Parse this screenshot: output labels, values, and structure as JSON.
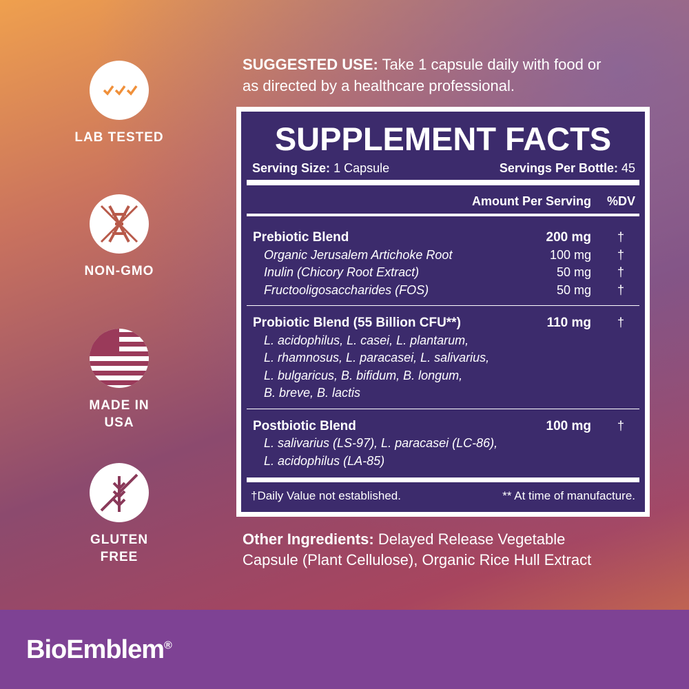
{
  "badges": [
    {
      "lines": [
        "LAB TESTED"
      ]
    },
    {
      "lines": [
        "NON-GMO"
      ]
    },
    {
      "lines": [
        "MADE IN",
        "USA"
      ]
    },
    {
      "lines": [
        "GLUTEN",
        "FREE"
      ]
    }
  ],
  "suggested_use": {
    "label": "SUGGESTED USE:",
    "lines": [
      "Take 1 capsule daily with food or",
      "as directed by a healthcare professional."
    ]
  },
  "facts": {
    "title": "SUPPLEMENT FACTS",
    "serving_size": {
      "label": "Serving Size:",
      "value": "1 Capsule"
    },
    "servings_per_bottle": {
      "label": "Servings Per Bottle:",
      "value": "45"
    },
    "columns": [
      "Amount Per Serving",
      "%DV"
    ],
    "blends": [
      {
        "name": "Prebiotic Blend",
        "amount": "200 mg",
        "dv": "†",
        "items": [
          {
            "name": "Organic Jerusalem Artichoke Root",
            "amount": "100 mg",
            "dv": "†"
          },
          {
            "name": "Inulin (Chicory Root Extract)",
            "amount": "50 mg",
            "dv": "†"
          },
          {
            "name": "Fructooligosaccharides (FOS)",
            "amount": "50 mg",
            "dv": "†"
          }
        ]
      },
      {
        "name": "Probiotic Blend (55 Billion CFU**)",
        "amount": "110 mg",
        "dv": "†",
        "strains": [
          "L. acidophilus, L. casei, L. plantarum,",
          "L. rhamnosus, L. paracasei, L. salivarius,",
          "L. bulgaricus, B. bifidum, B. longum,",
          "B. breve, B. lactis"
        ]
      },
      {
        "name": "Postbiotic Blend",
        "amount": "100 mg",
        "dv": "†",
        "strains": [
          "L. salivarius (LS-97), L. paracasei (LC-86),",
          "L. acidophilus (LA-85)"
        ]
      }
    ],
    "footnotes": [
      "†Daily Value not established.",
      "** At time of manufacture."
    ]
  },
  "other_ingredients": {
    "label": "Other Ingredients:",
    "lines": [
      "Delayed Release Vegetable",
      "Capsule (Plant Cellulose), Organic Rice Hull Extract"
    ]
  },
  "brand": {
    "name": "BioEmblem",
    "mark": "®"
  }
}
